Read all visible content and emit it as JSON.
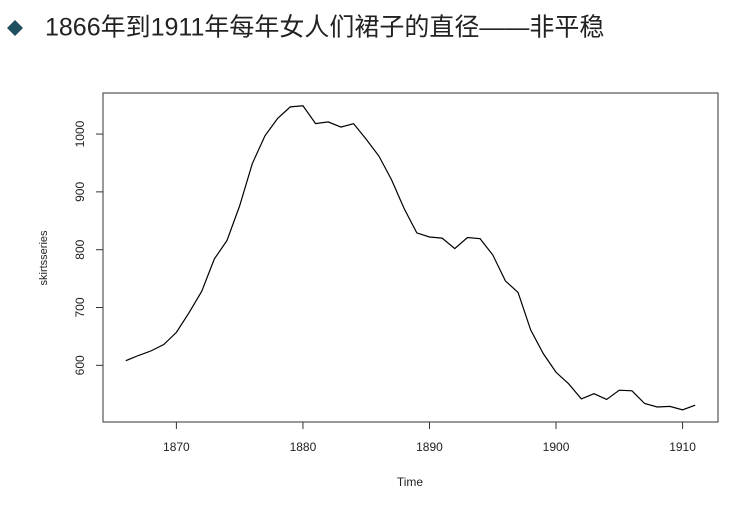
{
  "slide_title": "1866年到1911年每年女人们裙子的直径——非平稳",
  "chart_data": {
    "type": "line",
    "x": [
      1866,
      1867,
      1868,
      1869,
      1870,
      1871,
      1872,
      1873,
      1874,
      1875,
      1876,
      1877,
      1878,
      1879,
      1880,
      1881,
      1882,
      1883,
      1884,
      1885,
      1886,
      1887,
      1888,
      1889,
      1890,
      1891,
      1892,
      1893,
      1894,
      1895,
      1896,
      1897,
      1898,
      1899,
      1900,
      1901,
      1902,
      1903,
      1904,
      1905,
      1906,
      1907,
      1908,
      1909,
      1910,
      1911
    ],
    "series": [
      {
        "name": "skirtsseries",
        "color": "#000000",
        "values": [
          608,
          617,
          625,
          636,
          657,
          691,
          728,
          784,
          816,
          876,
          949,
          997,
          1027,
          1047,
          1049,
          1018,
          1021,
          1012,
          1018,
          991,
          962,
          921,
          871,
          829,
          822,
          820,
          802,
          821,
          819,
          791,
          746,
          726,
          661,
          620,
          588,
          568,
          542,
          551,
          541,
          557,
          556,
          534,
          528,
          529,
          523,
          531
        ]
      }
    ],
    "x_label": "Time",
    "y_label": "skirtsseries",
    "xlim": [
      1864.2,
      1912.8
    ],
    "xticks": [
      1870,
      1880,
      1890,
      1900,
      1910
    ],
    "ylim": [
      502,
      1071
    ],
    "yticks": [
      600,
      700,
      800,
      900,
      1000
    ]
  }
}
